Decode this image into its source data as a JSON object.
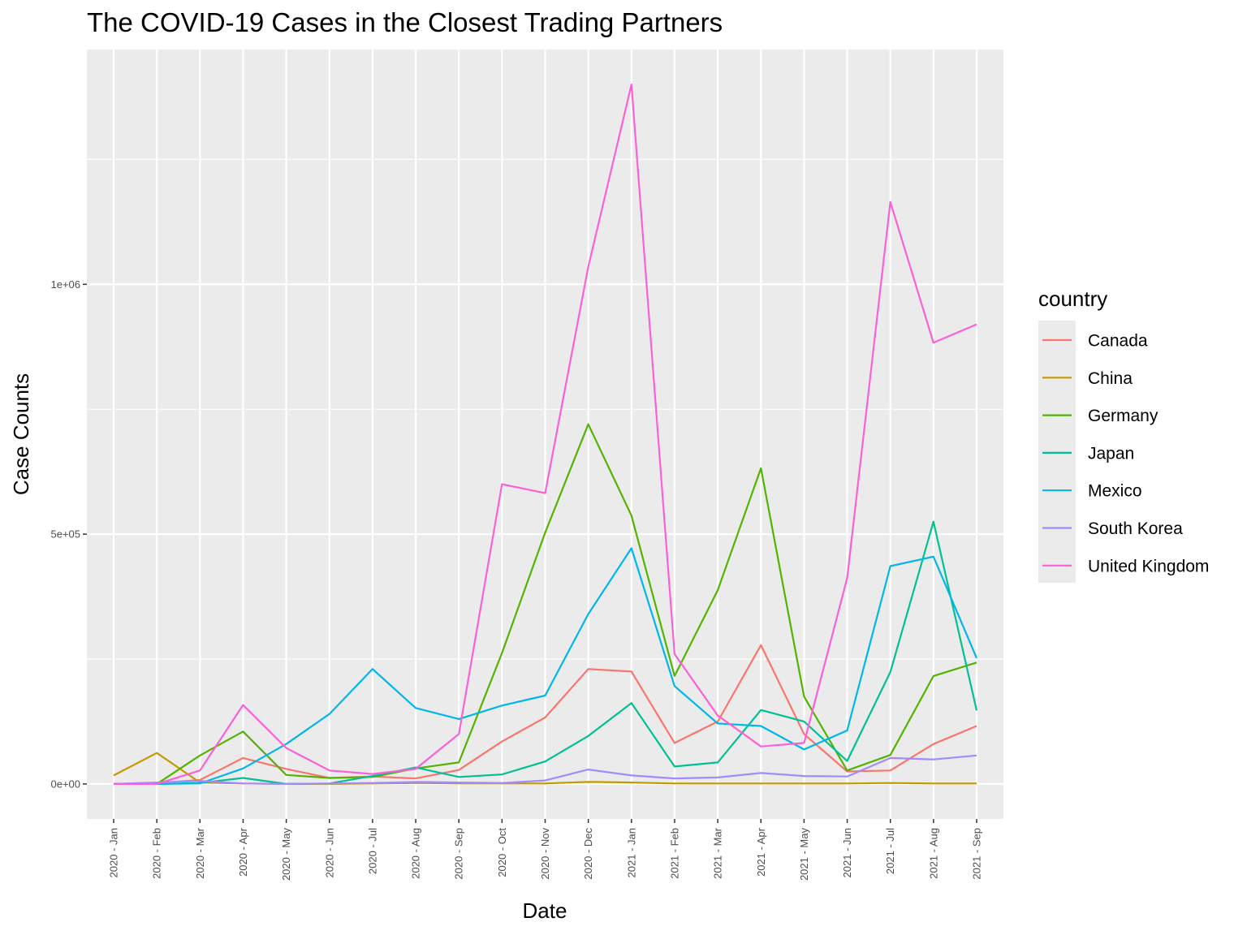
{
  "chart_data": {
    "type": "line",
    "title": "The COVID-19 Cases in the Closest Trading Partners",
    "xlabel": "Date",
    "ylabel": "Case Counts",
    "categories": [
      "2020 - Jan",
      "2020 - Feb",
      "2020 - Mar",
      "2020 - Apr",
      "2020 - May",
      "2020 - Jun",
      "2020 - Jul",
      "2020 - Aug",
      "2020 - Sep",
      "2020 - Oct",
      "2020 - Nov",
      "2020 - Dec",
      "2021 - Jan",
      "2021 - Feb",
      "2021 - Mar",
      "2021 - Apr",
      "2021 - May",
      "2021 - Jun",
      "2021 - Jul",
      "2021 - Aug",
      "2021 - Sep"
    ],
    "y_ticks": [
      {
        "value": 0,
        "label": "0e+00"
      },
      {
        "value": 500000,
        "label": "5e+05"
      },
      {
        "value": 1000000,
        "label": "1e+06"
      }
    ],
    "ylim": [
      -70000,
      1470000
    ],
    "grid": true,
    "legend_title": "country",
    "legend_position": "right",
    "series": [
      {
        "name": "Canada",
        "color": "#F8766D",
        "values": [
          0,
          2000,
          8000,
          52000,
          30000,
          12000,
          15000,
          11000,
          28000,
          85000,
          133000,
          230000,
          225000,
          82000,
          125000,
          278000,
          100000,
          25000,
          27000,
          80000,
          116000
        ]
      },
      {
        "name": "China",
        "color": "#C49A00",
        "values": [
          17000,
          62000,
          3000,
          1000,
          0,
          0,
          1000,
          2000,
          1000,
          1000,
          1000,
          4000,
          3000,
          1000,
          1000,
          1000,
          1000,
          1000,
          2000,
          1000,
          1000
        ]
      },
      {
        "name": "Germany",
        "color": "#53B400",
        "values": [
          0,
          0,
          57000,
          105000,
          18000,
          12000,
          14000,
          31000,
          43000,
          262000,
          503000,
          720000,
          537000,
          216000,
          388000,
          632000,
          175000,
          27000,
          58000,
          216000,
          243000
        ]
      },
      {
        "name": "Japan",
        "color": "#00C094",
        "values": [
          0,
          0,
          2000,
          12000,
          0,
          1000,
          16000,
          33000,
          14000,
          19000,
          45000,
          96000,
          162000,
          35000,
          43000,
          148000,
          125000,
          46000,
          224000,
          525000,
          147000
        ]
      },
      {
        "name": "Mexico",
        "color": "#00B6EB",
        "values": [
          0,
          0,
          1000,
          31000,
          80000,
          140000,
          230000,
          152000,
          130000,
          157000,
          177000,
          340000,
          472000,
          196000,
          121000,
          116000,
          69000,
          107000,
          436000,
          455000,
          252000
        ]
      },
      {
        "name": "South Korea",
        "color": "#A58AFF",
        "values": [
          0,
          3000,
          6000,
          1000,
          0,
          1000,
          2000,
          4000,
          3000,
          2000,
          7000,
          29000,
          17000,
          11000,
          13000,
          22000,
          16000,
          15000,
          52000,
          49000,
          57000
        ]
      },
      {
        "name": "United Kingdom",
        "color": "#FB61D7",
        "values": [
          0,
          0,
          27000,
          158000,
          72000,
          27000,
          20000,
          30000,
          100000,
          600000,
          582000,
          1035000,
          1400000,
          260000,
          137000,
          75000,
          82000,
          412000,
          1165000,
          883000,
          920000
        ]
      }
    ]
  }
}
